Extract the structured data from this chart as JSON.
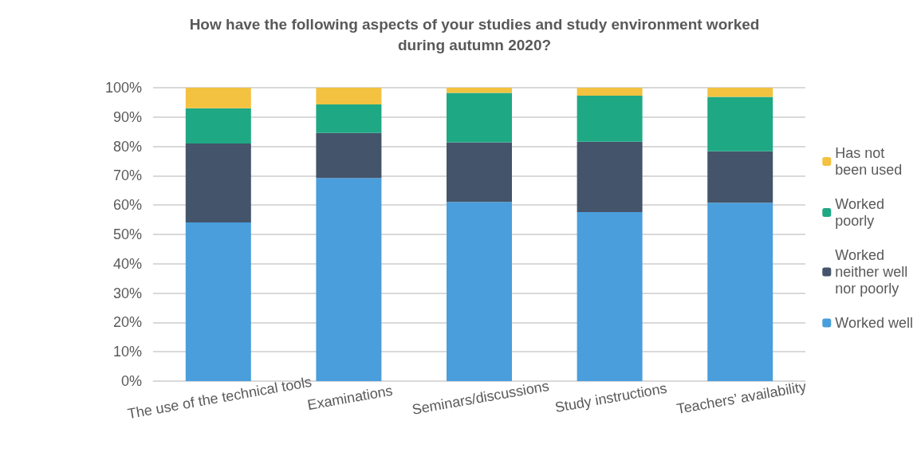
{
  "chart_data": {
    "type": "bar",
    "stacked": true,
    "title": "How have the following aspects of your studies and study environment worked\nduring autumn 2020?",
    "categories": [
      "The use of the technical tools",
      "Examinations",
      "Seminars/discussions",
      "Study instructions",
      "Teachers’ availability"
    ],
    "series": [
      {
        "name": "Worked well",
        "color": "#4a9edb",
        "values": [
          54.1,
          69.2,
          61.1,
          57.6,
          60.8
        ]
      },
      {
        "name": "Worked\nneither well\nnor poorly",
        "color": "#44546a",
        "values": [
          26.9,
          15.4,
          20.3,
          24.0,
          17.5
        ]
      },
      {
        "name": "Worked\npoorly",
        "color": "#1fa884",
        "values": [
          12.0,
          9.7,
          16.8,
          15.7,
          18.6
        ]
      },
      {
        "name": "Has not\nbeen used",
        "color": "#f2c240",
        "values": [
          7.0,
          5.7,
          1.8,
          2.7,
          3.1
        ]
      }
    ],
    "ylim": [
      0,
      100
    ],
    "yticks": [
      {
        "value": 0,
        "label": "0%"
      },
      {
        "value": 10,
        "label": "10%"
      },
      {
        "value": 20,
        "label": "20%"
      },
      {
        "value": 30,
        "label": "30%"
      },
      {
        "value": 40,
        "label": "40%"
      },
      {
        "value": 50,
        "label": "50%"
      },
      {
        "value": 60,
        "label": "60%"
      },
      {
        "value": 70,
        "label": "70%"
      },
      {
        "value": 80,
        "label": "80%"
      },
      {
        "value": 90,
        "label": "90%"
      },
      {
        "value": 100,
        "label": "100%"
      }
    ],
    "grid": "y",
    "legend": "right"
  }
}
